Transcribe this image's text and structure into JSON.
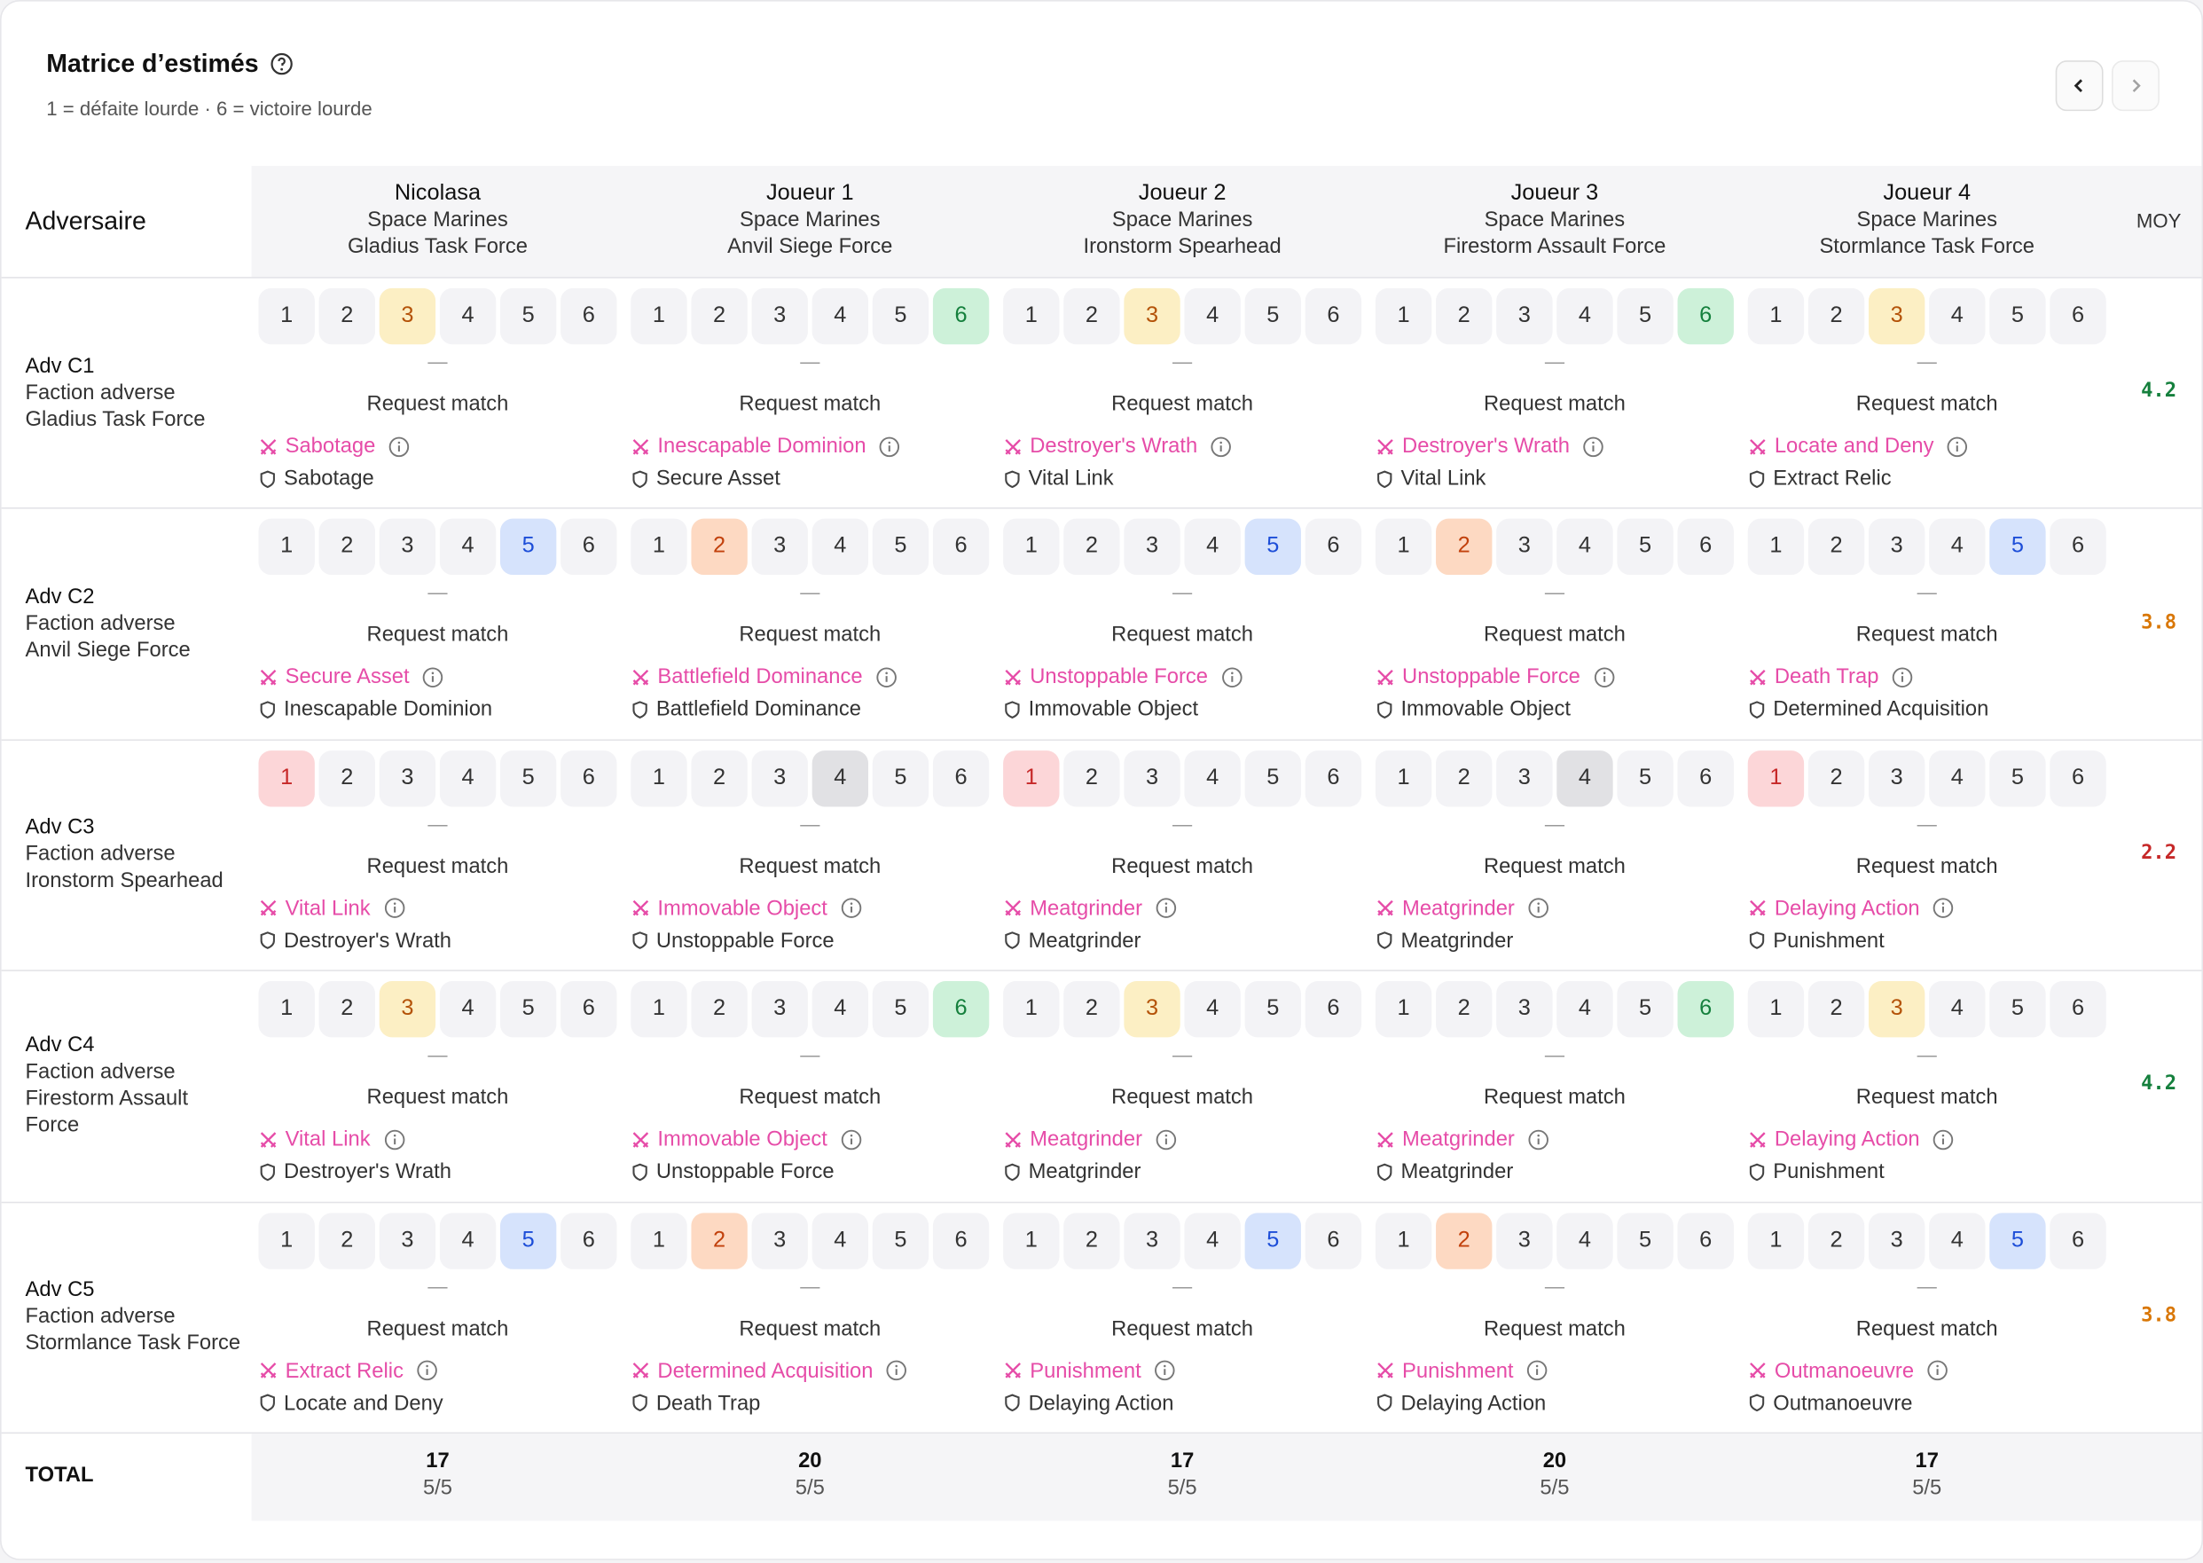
{
  "header": {
    "title": "Matrice d’estimés",
    "subtitle": "1 = défaite lourde · 6 = victoire lourde"
  },
  "table": {
    "corner": "Adversaire",
    "avg_header": "MOY",
    "total_label": "TOTAL",
    "scale": [
      1,
      2,
      3,
      4,
      5,
      6
    ],
    "dash": "—",
    "request": "Request match",
    "columns": [
      {
        "name": "Nicolasa",
        "army": "Space Marines",
        "detachment": "Gladius Task Force"
      },
      {
        "name": "Joueur 1",
        "army": "Space Marines",
        "detachment": "Anvil Siege Force"
      },
      {
        "name": "Joueur 2",
        "army": "Space Marines",
        "detachment": "Ironstorm Spearhead"
      },
      {
        "name": "Joueur 3",
        "army": "Space Marines",
        "detachment": "Firestorm Assault Force"
      },
      {
        "name": "Joueur 4",
        "army": "Space Marines",
        "detachment": "Stormlance Task Force"
      }
    ],
    "rows": [
      {
        "name": "Adv C1",
        "faction": "Faction adverse",
        "detachment": "Gladius Task Force",
        "avg": 4.2,
        "cells": [
          {
            "score": 3,
            "attack": "Sabotage",
            "defense": "Sabotage"
          },
          {
            "score": 6,
            "attack": "Inescapable Dominion",
            "defense": "Secure Asset"
          },
          {
            "score": 3,
            "attack": "Destroyer's Wrath",
            "defense": "Vital Link"
          },
          {
            "score": 6,
            "attack": "Destroyer's Wrath",
            "defense": "Vital Link"
          },
          {
            "score": 3,
            "attack": "Locate and Deny",
            "defense": "Extract Relic"
          }
        ]
      },
      {
        "name": "Adv C2",
        "faction": "Faction adverse",
        "detachment": "Anvil Siege Force",
        "avg": 3.8,
        "cells": [
          {
            "score": 5,
            "attack": "Secure Asset",
            "defense": "Inescapable Dominion"
          },
          {
            "score": 2,
            "attack": "Battlefield Dominance",
            "defense": "Battlefield Dominance"
          },
          {
            "score": 5,
            "attack": "Unstoppable Force",
            "defense": "Immovable Object"
          },
          {
            "score": 2,
            "attack": "Unstoppable Force",
            "defense": "Immovable Object"
          },
          {
            "score": 5,
            "attack": "Death Trap",
            "defense": "Determined Acquisition"
          }
        ]
      },
      {
        "name": "Adv C3",
        "faction": "Faction adverse",
        "detachment": "Ironstorm Spearhead",
        "avg": 2.2,
        "cells": [
          {
            "score": 1,
            "attack": "Vital Link",
            "defense": "Destroyer's Wrath"
          },
          {
            "score": 4,
            "attack": "Immovable Object",
            "defense": "Unstoppable Force"
          },
          {
            "score": 1,
            "attack": "Meatgrinder",
            "defense": "Meatgrinder"
          },
          {
            "score": 4,
            "attack": "Meatgrinder",
            "defense": "Meatgrinder"
          },
          {
            "score": 1,
            "attack": "Delaying Action",
            "defense": "Punishment"
          }
        ]
      },
      {
        "name": "Adv C4",
        "faction": "Faction adverse",
        "detachment": "Firestorm Assault Force",
        "avg": 4.2,
        "cells": [
          {
            "score": 3,
            "attack": "Vital Link",
            "defense": "Destroyer's Wrath"
          },
          {
            "score": 6,
            "attack": "Immovable Object",
            "defense": "Unstoppable Force"
          },
          {
            "score": 3,
            "attack": "Meatgrinder",
            "defense": "Meatgrinder"
          },
          {
            "score": 6,
            "attack": "Meatgrinder",
            "defense": "Meatgrinder"
          },
          {
            "score": 3,
            "attack": "Delaying Action",
            "defense": "Punishment"
          }
        ]
      },
      {
        "name": "Adv C5",
        "faction": "Faction adverse",
        "detachment": "Stormlance Task Force",
        "avg": 3.8,
        "cells": [
          {
            "score": 5,
            "attack": "Extract Relic",
            "defense": "Locate and Deny"
          },
          {
            "score": 2,
            "attack": "Determined Acquisition",
            "defense": "Death Trap"
          },
          {
            "score": 5,
            "attack": "Punishment",
            "defense": "Delaying Action"
          },
          {
            "score": 2,
            "attack": "Punishment",
            "defense": "Delaying Action"
          },
          {
            "score": 5,
            "attack": "Outmanoeuvre",
            "defense": "Outmanoeuvre"
          }
        ]
      }
    ],
    "totals": [
      {
        "score": 17,
        "count": "5/5"
      },
      {
        "score": 20,
        "count": "5/5"
      },
      {
        "score": 17,
        "count": "5/5"
      },
      {
        "score": 20,
        "count": "5/5"
      },
      {
        "score": 17,
        "count": "5/5"
      }
    ]
  }
}
